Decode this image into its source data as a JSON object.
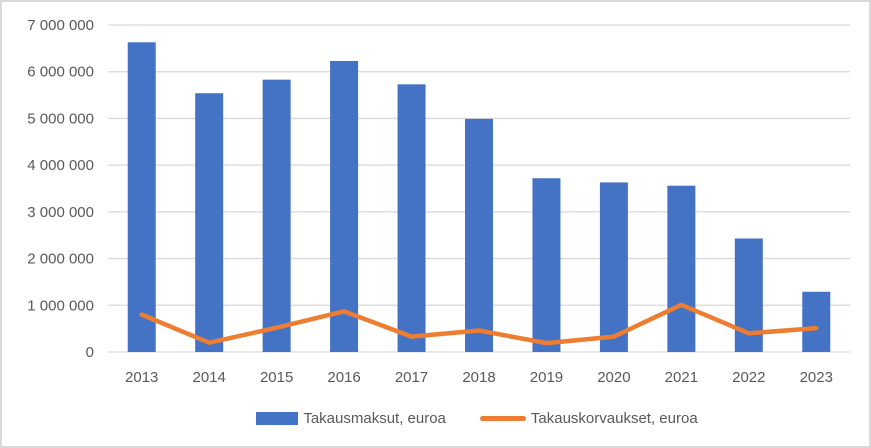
{
  "chart_data": {
    "type": "bar",
    "title": "",
    "xlabel": "",
    "ylabel": "",
    "categories": [
      "2013",
      "2014",
      "2015",
      "2016",
      "2017",
      "2018",
      "2019",
      "2020",
      "2021",
      "2022",
      "2023"
    ],
    "series": [
      {
        "name": "Takausmaksut, euroa",
        "type": "bar",
        "color": "#4472C4",
        "values": [
          6630000,
          5540000,
          5830000,
          6230000,
          5730000,
          4990000,
          3720000,
          3630000,
          3560000,
          2430000,
          1290000
        ]
      },
      {
        "name": "Takauskorvaukset, euroa",
        "type": "line",
        "color": "#ED7D31",
        "values": [
          800000,
          200000,
          520000,
          870000,
          330000,
          460000,
          190000,
          330000,
          1010000,
          400000,
          510000
        ]
      }
    ],
    "ylim": [
      0,
      7000000
    ],
    "ytick_step": 1000000,
    "ytick_labels": [
      "0",
      "1 000 000",
      "2 000 000",
      "3 000 000",
      "4 000 000",
      "5 000 000",
      "6 000 000",
      "7 000 000"
    ],
    "grid": true,
    "legend_position": "bottom"
  },
  "colors": {
    "grid": "#D9D9D9",
    "axis_text": "#595959",
    "frame_border": "#D9D9D9",
    "background": "#FFFFFF"
  }
}
